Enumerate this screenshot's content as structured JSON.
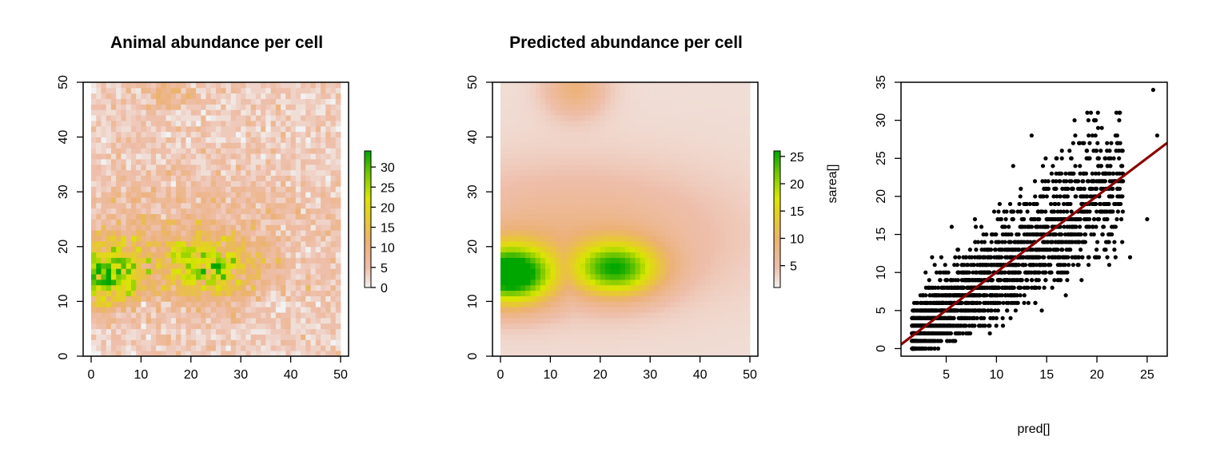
{
  "chart_data": [
    {
      "type": "heatmap",
      "title": "Animal abundance per cell",
      "xlim": [
        0,
        50
      ],
      "ylim": [
        0,
        50
      ],
      "x_ticks": [
        0,
        10,
        20,
        30,
        40,
        50
      ],
      "y_ticks": [
        0,
        10,
        20,
        30,
        40,
        50
      ],
      "grid_size": 50,
      "value_range": [
        0,
        34
      ],
      "pattern": "noisy counts; highest values (green, up to ~34) around y 12-20 along x 0-30, peak near x 0-3, y 13-15",
      "legend": {
        "placement": "right",
        "ticks": [
          0,
          5,
          10,
          15,
          20,
          25,
          30
        ],
        "range": [
          0,
          34
        ],
        "label": ""
      },
      "grid": false
    },
    {
      "type": "heatmap",
      "title": "Predicted abundance per cell",
      "xlim": [
        0,
        50
      ],
      "ylim": [
        0,
        50
      ],
      "x_ticks": [
        0,
        10,
        20,
        30,
        40,
        50
      ],
      "y_ticks": [
        0,
        10,
        20,
        30,
        40,
        50
      ],
      "grid_size": 50,
      "value_range": [
        1,
        26
      ],
      "hotspots": [
        {
          "x": 2,
          "y": 15,
          "peak": 26
        },
        {
          "x": 23,
          "y": 16,
          "peak": 21
        }
      ],
      "pattern": "smooth surface; two green hotspots centered near y 15-16, bridged by yellow band (~15-18) from x 0 to 35; low values (~2-5) at corners",
      "legend": {
        "placement": "right",
        "ticks": [
          5,
          10,
          15,
          20,
          25
        ],
        "range": [
          1,
          26
        ],
        "label": "sarea[]"
      },
      "grid": false
    },
    {
      "type": "scatter",
      "title": "",
      "xlabel": "pred[]",
      "ylabel": "",
      "xlim": [
        0.5,
        27
      ],
      "ylim": [
        -1,
        35
      ],
      "x_ticks": [
        5,
        10,
        15,
        20,
        25
      ],
      "y_ticks": [
        0,
        5,
        10,
        15,
        20,
        25,
        30,
        35
      ],
      "point_count": 2500,
      "pattern": "integer y counts vs continuous predicted x, dense band below x=12, spreading upward; y roughly equals x with Poisson-like scatter",
      "outliers": [
        {
          "x": 25.6,
          "y": 34
        },
        {
          "x": 13.5,
          "y": 28
        },
        {
          "x": 20.1,
          "y": 31
        },
        {
          "x": 19.4,
          "y": 31
        },
        {
          "x": 23.3,
          "y": 12
        },
        {
          "x": 25.0,
          "y": 17
        },
        {
          "x": 26.0,
          "y": 28
        }
      ],
      "fit_line": {
        "intercept": 0.04,
        "slope": 1.0,
        "color": "#8B0000"
      },
      "point_color": "#000000",
      "grid": false
    }
  ]
}
